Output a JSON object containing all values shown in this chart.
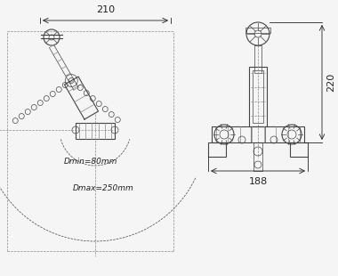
{
  "bg_color": "#f5f5f5",
  "line_color": "#444444",
  "dim_color": "#222222",
  "text_color": "#222222",
  "dashed_color": "#888888",
  "dim_210": "210",
  "dim_220": "220",
  "dim_188": "188",
  "dmin_label": "Dmin=80mm",
  "dmax_label": "Dmax=250mm",
  "figsize": [
    3.8,
    3.1
  ],
  "dpi": 100
}
